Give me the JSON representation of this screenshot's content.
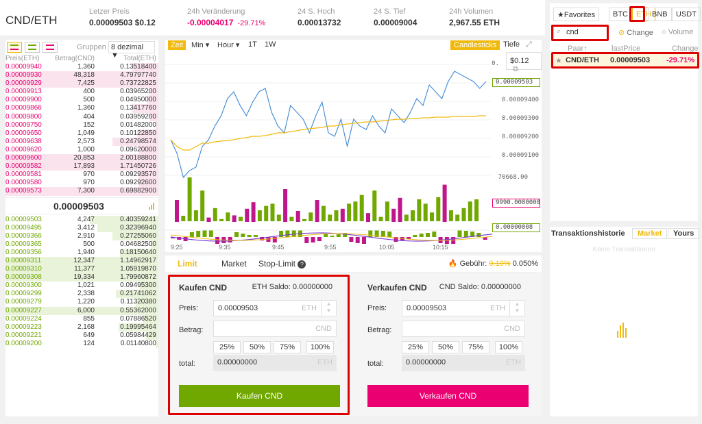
{
  "header": {
    "pair": "CND/ETH",
    "stats": [
      {
        "label": "Letzer Preis",
        "value": "0.00009503 $0.12",
        "color": "#333"
      },
      {
        "label": "24h Veränderung",
        "value": "-0.00004017",
        "extra": "-29.71%",
        "color": "#ea0070"
      },
      {
        "label": "24 S. Hoch",
        "value": "0.00013732",
        "color": "#333"
      },
      {
        "label": "24 S. Tief",
        "value": "0.00009004",
        "color": "#333"
      },
      {
        "label": "24h Volumen",
        "value": "2,967.55 ETH",
        "color": "#333"
      }
    ]
  },
  "orderbook": {
    "group_label": "Gruppen",
    "group_value": "8 dezimal ▼",
    "headers": [
      "Preis(ETH)",
      "Betrag(CND)",
      "Total(ETH)"
    ],
    "asks": [
      [
        "0.00009940",
        "1,360",
        "0.13518400",
        0.17
      ],
      [
        "0.00009930",
        "48,318",
        "4.79797740",
        1
      ],
      [
        "0.00009929",
        "7,425",
        "0.73722825",
        1
      ],
      [
        "0.00009913",
        "400",
        "0.03965200",
        0.06
      ],
      [
        "0.00009900",
        "500",
        "0.04950000",
        0.07
      ],
      [
        "0.00009866",
        "1,360",
        "0.13417760",
        0.17
      ],
      [
        "0.00009800",
        "404",
        "0.03959200",
        0.06
      ],
      [
        "0.00009750",
        "152",
        "0.01482000",
        0.02
      ],
      [
        "0.00009650",
        "1,049",
        "0.10122850",
        0.14
      ],
      [
        "0.00009638",
        "2,573",
        "0.24798574",
        0.3
      ],
      [
        "0.00009620",
        "1,000",
        "0.09620000",
        0.13
      ],
      [
        "0.00009600",
        "20,853",
        "2.00188800",
        1
      ],
      [
        "0.00009582",
        "17,893",
        "1.71450726",
        1
      ],
      [
        "0.00009581",
        "970",
        "0.09293570",
        0.13
      ],
      [
        "0.00009580",
        "970",
        "0.09292600",
        0.13
      ],
      [
        "0.00009573",
        "7,300",
        "0.69882900",
        1
      ]
    ],
    "last_price": "0.00009503",
    "bids": [
      [
        "0.00009503",
        "4,247",
        "0.40359241",
        0.45
      ],
      [
        "0.00009495",
        "3,412",
        "0.32396940",
        0.4
      ],
      [
        "0.00009366",
        "2,910",
        "0.27255060",
        0.3
      ],
      [
        "0.00009365",
        "500",
        "0.04682500",
        0.05
      ],
      [
        "0.00009356",
        "1,940",
        "0.18150640",
        0.25
      ],
      [
        "0.00009311",
        "12,347",
        "1.14962917",
        1
      ],
      [
        "0.00009310",
        "11,377",
        "1.05919870",
        1
      ],
      [
        "0.00009308",
        "19,334",
        "1.79960872",
        1
      ],
      [
        "0.00009300",
        "1,021",
        "0.09495300",
        0.12
      ],
      [
        "0.00009299",
        "2,338",
        "0.21741062",
        0.28
      ],
      [
        "0.00009279",
        "1,220",
        "0.11320380",
        0.15
      ],
      [
        "0.00009227",
        "6,000",
        "0.55362000",
        1
      ],
      [
        "0.00009224",
        "855",
        "0.07886520",
        0.1
      ],
      [
        "0.00009223",
        "2,168",
        "0.19995464",
        0.26
      ],
      [
        "0.00009221",
        "649",
        "0.05984429",
        0.08
      ],
      [
        "0.00009200",
        "124",
        "0.01140800",
        0.02
      ]
    ]
  },
  "chart": {
    "intervals": [
      "Zeit",
      "Min ▾",
      "Hour ▾",
      "1T",
      "1W"
    ],
    "type_label": "Candlesticks",
    "depth_label": "Tiefe",
    "expand_icon": "expand-icon",
    "price_tip": "$0.12",
    "price_labels": [
      "0.",
      "0.00009503",
      "0.00009400",
      "0.00009300",
      "0.00009200",
      "0.00009100"
    ],
    "volume_labels": [
      "70668.00",
      "9990.0000000",
      "0.00000008"
    ],
    "times": [
      "9:25",
      "9:35",
      "9:45",
      "9:55",
      "10:05",
      "10:15"
    ]
  },
  "form": {
    "tabs": [
      "Limit",
      "Market",
      "Stop-Limit"
    ],
    "fee_label": "Gebühr:",
    "fee_old": "0.10%",
    "fee_new": "0.050%",
    "buy": {
      "title": "Kaufen CND",
      "saldo": "ETH Saldo: 0.00000000",
      "price_label": "Preis:",
      "price": "0.00009503",
      "price_unit": "ETH",
      "amount_label": "Betrag:",
      "amount_unit": "CND",
      "pcts": [
        "25%",
        "50%",
        "75%",
        "100%"
      ],
      "total_label": "total:",
      "total": "0.00000000",
      "total_unit": "ETH",
      "button": "Kaufen CND",
      "color": "#70a800"
    },
    "sell": {
      "title": "Verkaufen CND",
      "saldo": "CND Saldo: 0.00000000",
      "price_label": "Preis:",
      "price": "0.00009503",
      "price_unit": "ETH",
      "amount_label": "Betrag:",
      "amount_unit": "CND",
      "pcts": [
        "25%",
        "50%",
        "75%",
        "100%"
      ],
      "total_label": "total:",
      "total": "0.00000000",
      "total_unit": "ETH",
      "button": "Verkaufen CND",
      "color": "#ea0070"
    }
  },
  "markets": {
    "tabs": [
      "★Favorites",
      "BTC",
      "ETH",
      "BNB",
      "USDT"
    ],
    "search": "cnd",
    "sort_change": "Change",
    "sort_volume": "Volume",
    "headers": [
      "Paar↑",
      "lastPrice",
      "Change"
    ],
    "row": {
      "pair": "CND/ETH",
      "price": "0.00009503",
      "change": "-29.71%"
    }
  },
  "history": {
    "title": "Transaktionshistorie",
    "btn_market": "Market",
    "btn_yours": "Yours",
    "empty": "Keine Transaktionen"
  }
}
